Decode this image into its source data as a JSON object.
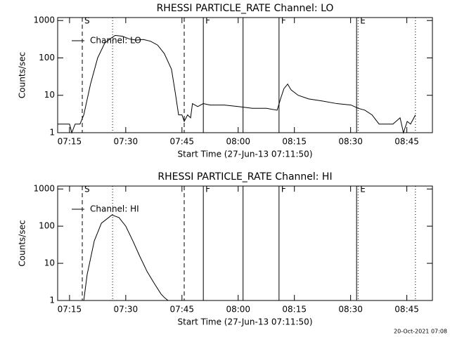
{
  "chart_data": [
    {
      "type": "line",
      "title": "RHESSI PARTICLE_RATE Channel: LO",
      "xlabel": "Start Time (27-Jun-13 07:11:50)",
      "ylabel": "Counts/sec",
      "log_y": true,
      "xlim": [
        431.83,
        531.83
      ],
      "ylim": [
        1,
        1200
      ],
      "yticks": [
        1,
        10,
        100,
        1000
      ],
      "xticks": [
        {
          "value": 435,
          "label": "07:15"
        },
        {
          "value": 450,
          "label": "07:30"
        },
        {
          "value": 465,
          "label": "07:45"
        },
        {
          "value": 480,
          "label": "08:00"
        },
        {
          "value": 495,
          "label": "08:15"
        },
        {
          "value": 510,
          "label": "08:30"
        },
        {
          "value": 525,
          "label": "08:45"
        }
      ],
      "series": [
        {
          "name": "Channel: LO",
          "color": "#000000",
          "x": [
            431.83,
            435.0,
            435.6,
            436.5,
            437.8,
            438.8,
            440.6,
            442.5,
            444.4,
            446.3,
            447.2,
            449.1,
            451.0,
            452.8,
            454.7,
            456.6,
            458.5,
            460.3,
            462.2,
            463.2,
            464.1,
            465.0,
            465.6,
            466.5,
            467.3,
            467.8,
            469.2,
            470.7,
            472.5,
            476.3,
            480.0,
            483.8,
            487.5,
            490.4,
            491.3,
            492.2,
            493.2,
            494.1,
            496.0,
            498.8,
            502.6,
            506.3,
            510.1,
            512.0,
            513.8,
            515.7,
            517.6,
            521.3,
            523.2,
            524.1,
            525.1,
            526.0,
            527.3
          ],
          "values": [
            1.7,
            1.7,
            1,
            1.7,
            1.7,
            3,
            20,
            100,
            250,
            350,
            400,
            380,
            320,
            300,
            310,
            280,
            220,
            130,
            50,
            12,
            3,
            3,
            2,
            3,
            2.5,
            6,
            5,
            6,
            5.5,
            5.5,
            5,
            4.5,
            4.5,
            4,
            8,
            15,
            20,
            14,
            10,
            8,
            7,
            6,
            5.5,
            4.5,
            4,
            3,
            1.7,
            1.7,
            2.5,
            1,
            2,
            1.7,
            3
          ]
        }
      ],
      "markers": [
        {
          "x": 438.4,
          "style": "dashed",
          "label": "S"
        },
        {
          "x": 446.5,
          "style": "dotted"
        },
        {
          "x": 465.6,
          "style": "dashed"
        },
        {
          "x": 470.7,
          "style": "solid",
          "label": "F"
        },
        {
          "x": 481.3,
          "style": "solid"
        },
        {
          "x": 490.9,
          "style": "solid",
          "label": "F"
        },
        {
          "x": 511.6,
          "style": "solid"
        },
        {
          "x": 512.0,
          "style": "dotted",
          "label": "E"
        },
        {
          "x": 527.3,
          "style": "dotted"
        }
      ]
    },
    {
      "type": "line",
      "title": "RHESSI PARTICLE_RATE Channel: HI",
      "xlabel": "Start Time (27-Jun-13 07:11:50)",
      "ylabel": "Counts/sec",
      "log_y": true,
      "xlim": [
        431.83,
        531.83
      ],
      "ylim": [
        1,
        1200
      ],
      "yticks": [
        1,
        10,
        100,
        1000
      ],
      "xticks": [
        {
          "value": 435,
          "label": "07:15"
        },
        {
          "value": 450,
          "label": "07:30"
        },
        {
          "value": 465,
          "label": "07:45"
        },
        {
          "value": 480,
          "label": "08:00"
        },
        {
          "value": 495,
          "label": "08:15"
        },
        {
          "value": 510,
          "label": "08:30"
        },
        {
          "value": 525,
          "label": "08:45"
        }
      ],
      "series": [
        {
          "name": "Channel: HI",
          "color": "#000000",
          "x": [
            438.8,
            439.7,
            441.6,
            443.5,
            446.3,
            448.2,
            450.0,
            451.9,
            453.8,
            455.7,
            457.5,
            459.4,
            460.3,
            461.3
          ],
          "values": [
            1,
            5,
            40,
            120,
            200,
            170,
            100,
            40,
            15,
            6,
            3,
            1.5,
            1.2,
            1
          ]
        }
      ],
      "markers": [
        {
          "x": 438.4,
          "style": "dashed",
          "label": "S"
        },
        {
          "x": 446.5,
          "style": "dotted"
        },
        {
          "x": 465.6,
          "style": "dashed"
        },
        {
          "x": 470.7,
          "style": "solid",
          "label": "F"
        },
        {
          "x": 481.3,
          "style": "solid"
        },
        {
          "x": 490.9,
          "style": "solid",
          "label": "F"
        },
        {
          "x": 511.6,
          "style": "solid"
        },
        {
          "x": 512.0,
          "style": "dotted",
          "label": "E"
        },
        {
          "x": 527.3,
          "style": "dotted"
        }
      ]
    }
  ],
  "footer": "20-Oct-2021 07:08"
}
